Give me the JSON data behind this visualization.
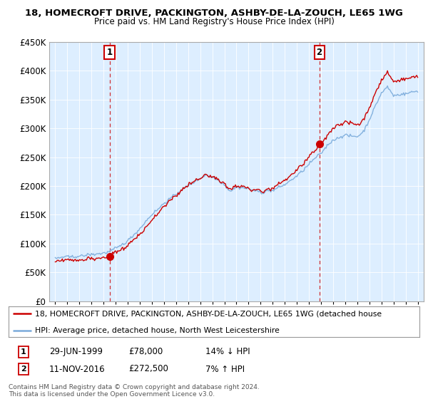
{
  "title": "18, HOMECROFT DRIVE, PACKINGTON, ASHBY-DE-LA-ZOUCH, LE65 1WG",
  "subtitle": "Price paid vs. HM Land Registry's House Price Index (HPI)",
  "legend_line1": "18, HOMECROFT DRIVE, PACKINGTON, ASHBY-DE-LA-ZOUCH, LE65 1WG (detached house",
  "legend_line2": "HPI: Average price, detached house, North West Leicestershire",
  "footer1": "Contains HM Land Registry data © Crown copyright and database right 2024.",
  "footer2": "This data is licensed under the Open Government Licence v3.0.",
  "annotation1": {
    "num": "1",
    "date": "29-JUN-1999",
    "price": "£78,000",
    "pct": "14% ↓ HPI"
  },
  "annotation2": {
    "num": "2",
    "date": "11-NOV-2016",
    "price": "£272,500",
    "pct": "7% ↑ HPI"
  },
  "transaction1_year": 1999.49,
  "transaction1_price": 78000,
  "transaction2_year": 2016.86,
  "transaction2_price": 272500,
  "hpi_color": "#7aabdb",
  "price_color": "#cc0000",
  "vline_color": "#cc0000",
  "plot_bg_color": "#ddeeff",
  "background_color": "#ffffff",
  "ylim": [
    0,
    450000
  ],
  "xlim_start": 1994.5,
  "xlim_end": 2025.5,
  "yticks": [
    0,
    50000,
    100000,
    150000,
    200000,
    250000,
    300000,
    350000,
    400000,
    450000
  ],
  "xticks": [
    1995,
    1996,
    1997,
    1998,
    1999,
    2000,
    2001,
    2002,
    2003,
    2004,
    2005,
    2006,
    2007,
    2008,
    2009,
    2010,
    2011,
    2012,
    2013,
    2014,
    2015,
    2016,
    2017,
    2018,
    2019,
    2020,
    2021,
    2022,
    2023,
    2024,
    2025
  ]
}
